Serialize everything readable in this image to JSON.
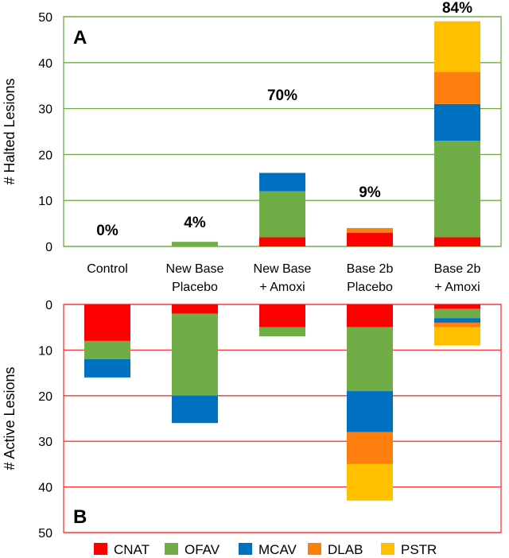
{
  "chart_data": [
    {
      "type": "bar",
      "stacked": true,
      "panel_label": "A",
      "ylabel": "# Halted Lesions",
      "ylim": [
        0,
        50
      ],
      "yticks": [
        0,
        10,
        20,
        30,
        40,
        50
      ],
      "grid": true,
      "grid_color": "#70ad47",
      "categories": [
        "Control",
        "New Base\nPlacebo",
        "New Base\n+ Amoxi",
        "Base 2b\nPlacebo",
        "Base 2b\n+ Amoxi"
      ],
      "percent_labels": [
        "0%",
        "4%",
        "70%",
        "9%",
        "84%"
      ],
      "series": [
        {
          "name": "CNAT",
          "color": "#ff0000",
          "values": [
            0,
            0,
            2,
            3,
            2
          ]
        },
        {
          "name": "OFAV",
          "color": "#70ad47",
          "values": [
            0,
            1,
            10,
            0,
            21
          ]
        },
        {
          "name": "MCAV",
          "color": "#0070c0",
          "values": [
            0,
            0,
            4,
            0,
            8
          ]
        },
        {
          "name": "DLAB",
          "color": "#ff7f0e",
          "values": [
            0,
            0,
            0,
            1,
            7
          ]
        },
        {
          "name": "PSTR",
          "color": "#ffc000",
          "values": [
            0,
            0,
            0,
            0,
            11
          ]
        }
      ]
    },
    {
      "type": "bar",
      "stacked": true,
      "inverted_y": true,
      "panel_label": "B",
      "ylabel": "# Active Lesions",
      "ylim": [
        0,
        50
      ],
      "yticks": [
        0,
        10,
        20,
        30,
        40,
        50
      ],
      "grid": true,
      "grid_color": "#ff3333",
      "categories": [
        "Control",
        "New Base\nPlacebo",
        "New Base\n+ Amoxi",
        "Base 2b\nPlacebo",
        "Base 2b\n+ Amoxi"
      ],
      "series": [
        {
          "name": "CNAT",
          "color": "#ff0000",
          "values": [
            8,
            2,
            5,
            5,
            1
          ]
        },
        {
          "name": "OFAV",
          "color": "#70ad47",
          "values": [
            4,
            18,
            2,
            14,
            2
          ]
        },
        {
          "name": "MCAV",
          "color": "#0070c0",
          "values": [
            4,
            6,
            0,
            9,
            1
          ]
        },
        {
          "name": "DLAB",
          "color": "#ff7f0e",
          "values": [
            0,
            0,
            0,
            7,
            1
          ]
        },
        {
          "name": "PSTR",
          "color": "#ffc000",
          "values": [
            0,
            0,
            0,
            8,
            4
          ]
        }
      ]
    }
  ],
  "legend": {
    "position": "bottom",
    "items": [
      {
        "label": "CNAT",
        "color": "#ff0000"
      },
      {
        "label": "OFAV",
        "color": "#70ad47"
      },
      {
        "label": "MCAV",
        "color": "#0070c0"
      },
      {
        "label": "DLAB",
        "color": "#ff7f0e"
      },
      {
        "label": "PSTR",
        "color": "#ffc000"
      }
    ]
  }
}
